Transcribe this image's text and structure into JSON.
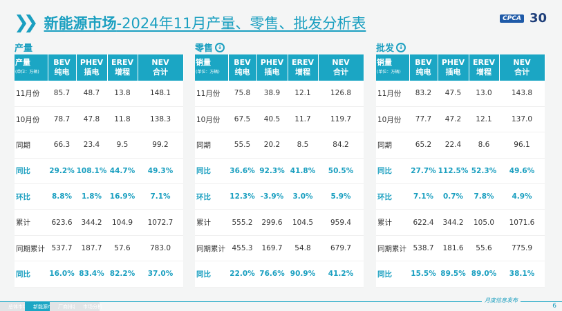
{
  "title": {
    "prefix": "新能源市场",
    "suffix": "-2024年11月产量、零售、批发分析表"
  },
  "logo": {
    "brand": "CPCA",
    "anniversary": "30"
  },
  "columns": {
    "bev": "BEV",
    "bev_cn": "纯电",
    "phev": "PHEV",
    "phev_cn": "插电",
    "erev": "EREV",
    "erev_cn": "增程",
    "nev": "NEV",
    "nev_cn": "合计",
    "unit": "(单位：万辆)"
  },
  "sections": [
    {
      "title": "产量",
      "header_label": "产量",
      "icon": "none",
      "rows": [
        [
          "11月份",
          "85.7",
          "48.7",
          "13.8",
          "148.1"
        ],
        [
          "10月份",
          "78.7",
          "47.8",
          "11.8",
          "138.3"
        ],
        [
          "同期",
          "66.3",
          "23.4",
          "9.5",
          "99.2"
        ],
        [
          "同比",
          "29.2%",
          "108.1%",
          "44.7%",
          "49.3%"
        ],
        [
          "环比",
          "8.8%",
          "1.8%",
          "16.9%",
          "7.1%"
        ],
        [
          "累计",
          "623.6",
          "344.2",
          "104.9",
          "1072.7"
        ],
        [
          "同期累计",
          "537.7",
          "187.7",
          "57.6",
          "783.0"
        ],
        [
          "同比",
          "16.0%",
          "83.4%",
          "82.2%",
          "37.0%"
        ]
      ]
    },
    {
      "title": "零售",
      "header_label": "销量",
      "icon": "arrow-down-circle-icon",
      "rows": [
        [
          "11月份",
          "75.8",
          "38.9",
          "12.1",
          "126.8"
        ],
        [
          "10月份",
          "67.5",
          "40.5",
          "11.7",
          "119.7"
        ],
        [
          "同期",
          "55.5",
          "20.2",
          "8.5",
          "84.2"
        ],
        [
          "同比",
          "36.6%",
          "92.3%",
          "41.8%",
          "50.5%"
        ],
        [
          "环比",
          "12.3%",
          "-3.9%",
          "3.0%",
          "5.9%"
        ],
        [
          "累计",
          "555.2",
          "299.6",
          "104.5",
          "959.4"
        ],
        [
          "同期累计",
          "455.3",
          "169.7",
          "54.8",
          "679.7"
        ],
        [
          "同比",
          "22.0%",
          "76.6%",
          "90.9%",
          "41.2%"
        ]
      ]
    },
    {
      "title": "批发",
      "header_label": "销量",
      "icon": "arrow-down-circle-icon",
      "rows": [
        [
          "11月份",
          "83.2",
          "47.5",
          "13.0",
          "143.8"
        ],
        [
          "10月份",
          "77.7",
          "47.2",
          "12.1",
          "137.0"
        ],
        [
          "同期",
          "65.2",
          "22.4",
          "8.6",
          "96.1"
        ],
        [
          "同比",
          "27.7%",
          "112.5%",
          "52.3%",
          "49.6%"
        ],
        [
          "环比",
          "7.1%",
          "0.7%",
          "7.8%",
          "4.9%"
        ],
        [
          "累计",
          "622.4",
          "344.2",
          "105.0",
          "1071.6"
        ],
        [
          "同期累计",
          "538.7",
          "181.6",
          "55.6",
          "775.9"
        ],
        [
          "同比",
          "15.5%",
          "89.5%",
          "89.0%",
          "38.1%"
        ]
      ]
    }
  ],
  "footer": {
    "label": "月度信息发布",
    "page": "6",
    "tabs": [
      "总体市场",
      "新能源市场",
      "厂商排名",
      "市场分析"
    ],
    "active_tab": 1
  },
  "colors": {
    "accent": "#1ba6c4"
  }
}
